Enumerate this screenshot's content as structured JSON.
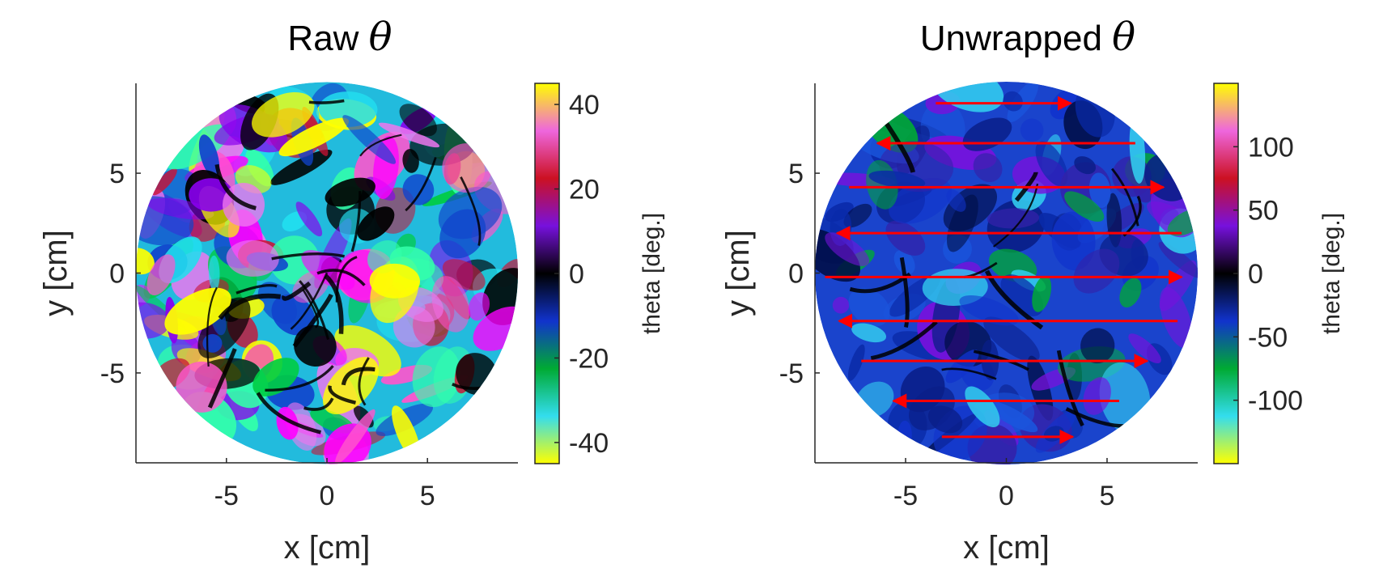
{
  "chart_data": [
    {
      "type": "heatmap",
      "title": "Raw",
      "title_symbol": "θ",
      "xlabel": "x [cm]",
      "ylabel": "y [cm]",
      "xlim": [
        -9.5,
        9.5
      ],
      "ylim": [
        -9.5,
        9.5
      ],
      "x_ticks": [
        -5,
        0,
        5
      ],
      "y_ticks": [
        5,
        0,
        -5
      ],
      "x_tick_labels": [
        "-5",
        "0",
        "5"
      ],
      "y_tick_labels": [
        "5",
        "0",
        "-5"
      ],
      "domain": "circle",
      "domain_radius": 9.5,
      "colorbar": {
        "label": "theta [deg.]",
        "range": [
          -45,
          45
        ],
        "ticks": [
          40,
          20,
          0,
          -20,
          -40
        ],
        "tick_labels": [
          "40",
          "20",
          "0",
          "-20",
          "-40"
        ],
        "colormap": [
          "#ffff00",
          "#33ddee",
          "#00aa33",
          "#1133cc",
          "#000000",
          "#7711dd",
          "#cc1122",
          "#ee66dd",
          "#ffff00"
        ]
      }
    },
    {
      "type": "heatmap",
      "title": "Unwrapped",
      "title_symbol": "θ",
      "xlabel": "x [cm]",
      "ylabel": "y [cm]",
      "xlim": [
        -9.5,
        9.5
      ],
      "ylim": [
        -9.5,
        9.5
      ],
      "x_ticks": [
        -5,
        0,
        5
      ],
      "y_ticks": [
        5,
        0,
        -5
      ],
      "x_tick_labels": [
        "-5",
        "0",
        "5"
      ],
      "y_tick_labels": [
        "5",
        "0",
        "-5"
      ],
      "domain": "circle",
      "domain_radius": 9.5,
      "colorbar": {
        "label": "theta [deg.]",
        "range": [
          -150,
          150
        ],
        "ticks": [
          100,
          50,
          0,
          -50,
          -100
        ],
        "tick_labels": [
          "100",
          "50",
          "0",
          "-50",
          "-100"
        ],
        "colormap": [
          "#ffff00",
          "#33ddee",
          "#00aa33",
          "#1133cc",
          "#000000",
          "#7711dd",
          "#cc1122",
          "#ee66dd",
          "#ffff00"
        ]
      },
      "annotations": {
        "type": "arrows",
        "color": "#ff0000",
        "arrows": [
          {
            "y": 8.5,
            "x_start": -3.5,
            "x_end": 3.2
          },
          {
            "y": 6.5,
            "x_start": 6.4,
            "x_end": -6.4
          },
          {
            "y": 4.3,
            "x_start": -7.8,
            "x_end": 7.8
          },
          {
            "y": 2.0,
            "x_start": 8.7,
            "x_end": -8.4
          },
          {
            "y": -0.2,
            "x_start": -9.0,
            "x_end": 8.7
          },
          {
            "y": -2.4,
            "x_start": 8.5,
            "x_end": -8.3
          },
          {
            "y": -4.4,
            "x_start": -7.2,
            "x_end": 7.0
          },
          {
            "y": -6.4,
            "x_start": 5.6,
            "x_end": -5.6
          },
          {
            "y": -8.2,
            "x_start": -3.2,
            "x_end": 3.3
          }
        ]
      }
    }
  ]
}
